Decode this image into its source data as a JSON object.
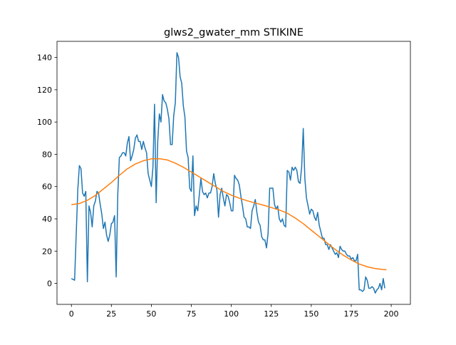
{
  "chart_data": {
    "type": "line",
    "title": "glws2_gwater_mm STIKINE",
    "xlabel": "",
    "ylabel": "",
    "xlim": [
      -9,
      212
    ],
    "ylim": [
      -13,
      150
    ],
    "xticks": [
      0,
      25,
      50,
      75,
      100,
      125,
      150,
      175,
      200
    ],
    "yticks": [
      0,
      20,
      40,
      60,
      80,
      100,
      120,
      140
    ],
    "grid": false,
    "legend": "none",
    "colors": {
      "observed": "#1f77b4",
      "smoothed": "#ff7f0e"
    },
    "series": [
      {
        "key": "observed",
        "values": [
          [
            0,
            3
          ],
          [
            2,
            2
          ],
          [
            4,
            58
          ],
          [
            5,
            73
          ],
          [
            6,
            71
          ],
          [
            7,
            56
          ],
          [
            8,
            54
          ],
          [
            9,
            57
          ],
          [
            10,
            1
          ],
          [
            11,
            48
          ],
          [
            12,
            44
          ],
          [
            13,
            35
          ],
          [
            14,
            48
          ],
          [
            15,
            51
          ],
          [
            16,
            57
          ],
          [
            17,
            56
          ],
          [
            18,
            49
          ],
          [
            19,
            43
          ],
          [
            20,
            34
          ],
          [
            21,
            38
          ],
          [
            22,
            30
          ],
          [
            23,
            26
          ],
          [
            24,
            30
          ],
          [
            25,
            37
          ],
          [
            26,
            38
          ],
          [
            27,
            42
          ],
          [
            28,
            4
          ],
          [
            29,
            55
          ],
          [
            30,
            78
          ],
          [
            31,
            79
          ],
          [
            32,
            81
          ],
          [
            33,
            81
          ],
          [
            34,
            79
          ],
          [
            35,
            87
          ],
          [
            36,
            91
          ],
          [
            37,
            76
          ],
          [
            38,
            79
          ],
          [
            39,
            83
          ],
          [
            40,
            90
          ],
          [
            41,
            92
          ],
          [
            42,
            88
          ],
          [
            43,
            88
          ],
          [
            44,
            83
          ],
          [
            45,
            88
          ],
          [
            46,
            84
          ],
          [
            47,
            81
          ],
          [
            48,
            68
          ],
          [
            49,
            64
          ],
          [
            50,
            60
          ],
          [
            51,
            72
          ],
          [
            52,
            111
          ],
          [
            53,
            50
          ],
          [
            54,
            88
          ],
          [
            55,
            105
          ],
          [
            56,
            100
          ],
          [
            57,
            117
          ],
          [
            58,
            113
          ],
          [
            59,
            112
          ],
          [
            60,
            108
          ],
          [
            61,
            102
          ],
          [
            62,
            86
          ],
          [
            63,
            86
          ],
          [
            64,
            104
          ],
          [
            65,
            112
          ],
          [
            66,
            143
          ],
          [
            67,
            140
          ],
          [
            68,
            128
          ],
          [
            69,
            124
          ],
          [
            70,
            110
          ],
          [
            71,
            103
          ],
          [
            72,
            82
          ],
          [
            73,
            78
          ],
          [
            74,
            59
          ],
          [
            75,
            57
          ],
          [
            76,
            79
          ],
          [
            77,
            42
          ],
          [
            78,
            48
          ],
          [
            79,
            45
          ],
          [
            80,
            55
          ],
          [
            81,
            65
          ],
          [
            82,
            57
          ],
          [
            83,
            55
          ],
          [
            84,
            56
          ],
          [
            85,
            53
          ],
          [
            86,
            56
          ],
          [
            87,
            56
          ],
          [
            88,
            60
          ],
          [
            89,
            68
          ],
          [
            90,
            62
          ],
          [
            91,
            58
          ],
          [
            92,
            41
          ],
          [
            93,
            55
          ],
          [
            94,
            59
          ],
          [
            95,
            53
          ],
          [
            96,
            48
          ],
          [
            97,
            55
          ],
          [
            98,
            54
          ],
          [
            99,
            50
          ],
          [
            100,
            45
          ],
          [
            101,
            45
          ],
          [
            102,
            67
          ],
          [
            103,
            65
          ],
          [
            104,
            64
          ],
          [
            105,
            61
          ],
          [
            106,
            54
          ],
          [
            107,
            48
          ],
          [
            108,
            41
          ],
          [
            109,
            40
          ],
          [
            110,
            35
          ],
          [
            111,
            35
          ],
          [
            112,
            34
          ],
          [
            113,
            45
          ],
          [
            114,
            48
          ],
          [
            115,
            52
          ],
          [
            116,
            44
          ],
          [
            117,
            38
          ],
          [
            118,
            36
          ],
          [
            119,
            29
          ],
          [
            120,
            27
          ],
          [
            121,
            27
          ],
          [
            122,
            22
          ],
          [
            123,
            31
          ],
          [
            124,
            59
          ],
          [
            125,
            59
          ],
          [
            126,
            59
          ],
          [
            127,
            49
          ],
          [
            128,
            46
          ],
          [
            129,
            48
          ],
          [
            130,
            40
          ],
          [
            131,
            38
          ],
          [
            132,
            40
          ],
          [
            133,
            36
          ],
          [
            134,
            35
          ],
          [
            135,
            70
          ],
          [
            136,
            69
          ],
          [
            137,
            64
          ],
          [
            138,
            72
          ],
          [
            139,
            70
          ],
          [
            140,
            72
          ],
          [
            141,
            70
          ],
          [
            142,
            63
          ],
          [
            143,
            62
          ],
          [
            144,
            72
          ],
          [
            145,
            96
          ],
          [
            146,
            65
          ],
          [
            147,
            53
          ],
          [
            148,
            48
          ],
          [
            149,
            43
          ],
          [
            150,
            46
          ],
          [
            151,
            45
          ],
          [
            152,
            41
          ],
          [
            153,
            39
          ],
          [
            154,
            44
          ],
          [
            155,
            36
          ],
          [
            156,
            32
          ],
          [
            157,
            28
          ],
          [
            158,
            28
          ],
          [
            159,
            24
          ],
          [
            160,
            24
          ],
          [
            161,
            21
          ],
          [
            162,
            24
          ],
          [
            163,
            22
          ],
          [
            164,
            20
          ],
          [
            165,
            18
          ],
          [
            166,
            19
          ],
          [
            167,
            16
          ],
          [
            168,
            23
          ],
          [
            169,
            21
          ],
          [
            170,
            20
          ],
          [
            171,
            20
          ],
          [
            172,
            18
          ],
          [
            173,
            17
          ],
          [
            174,
            17
          ],
          [
            175,
            15
          ],
          [
            176,
            16
          ],
          [
            177,
            14
          ],
          [
            178,
            14
          ],
          [
            179,
            18
          ],
          [
            180,
            -4
          ],
          [
            181,
            -4
          ],
          [
            182,
            -5
          ],
          [
            183,
            -4
          ],
          [
            184,
            4
          ],
          [
            185,
            2
          ],
          [
            186,
            -3
          ],
          [
            187,
            -3
          ],
          [
            188,
            -2
          ],
          [
            189,
            -3
          ],
          [
            190,
            -6
          ],
          [
            191,
            -4
          ],
          [
            192,
            -3
          ],
          [
            193,
            0
          ],
          [
            194,
            -4
          ],
          [
            195,
            3
          ],
          [
            196,
            -3
          ]
        ]
      },
      {
        "key": "smoothed",
        "values": [
          [
            0,
            48.8
          ],
          [
            5,
            49.5
          ],
          [
            10,
            51.5
          ],
          [
            15,
            54.5
          ],
          [
            20,
            58.5
          ],
          [
            25,
            62.5
          ],
          [
            30,
            67
          ],
          [
            35,
            71
          ],
          [
            40,
            74
          ],
          [
            45,
            76
          ],
          [
            50,
            77.2
          ],
          [
            55,
            77.3
          ],
          [
            60,
            76.5
          ],
          [
            65,
            74.5
          ],
          [
            70,
            72
          ],
          [
            75,
            69
          ],
          [
            80,
            66
          ],
          [
            85,
            63
          ],
          [
            90,
            60
          ],
          [
            95,
            57
          ],
          [
            100,
            54.7
          ],
          [
            105,
            52.8
          ],
          [
            110,
            51.2
          ],
          [
            115,
            49.8
          ],
          [
            120,
            48.5
          ],
          [
            125,
            47
          ],
          [
            130,
            45.5
          ],
          [
            135,
            43.5
          ],
          [
            140,
            40.5
          ],
          [
            145,
            37
          ],
          [
            150,
            33
          ],
          [
            155,
            29
          ],
          [
            160,
            25
          ],
          [
            165,
            21
          ],
          [
            170,
            17.5
          ],
          [
            175,
            14.5
          ],
          [
            180,
            12
          ],
          [
            185,
            10.3
          ],
          [
            190,
            9.2
          ],
          [
            195,
            8.6
          ],
          [
            197,
            8.5
          ]
        ]
      }
    ]
  }
}
